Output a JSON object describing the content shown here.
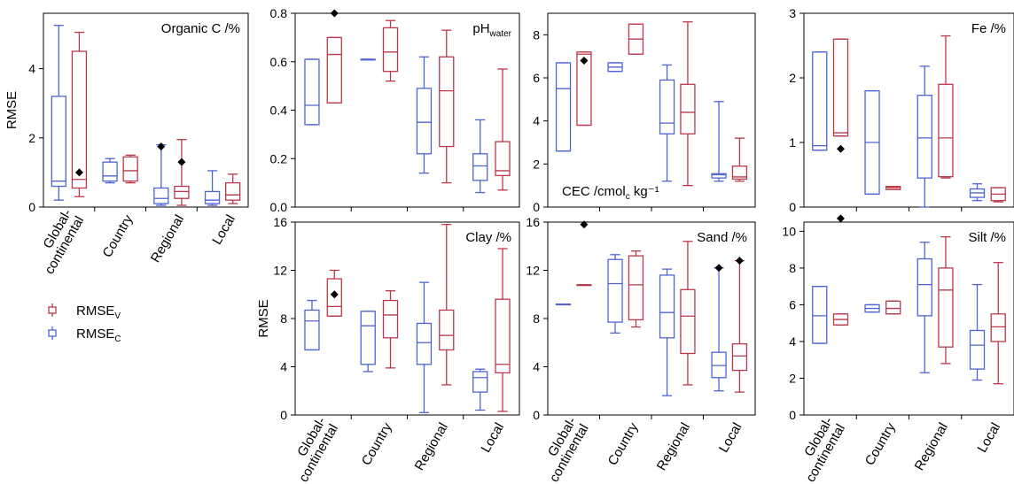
{
  "colors": {
    "validation": "#b8394b",
    "calibration": "#4f63d2",
    "frame": "#000000"
  },
  "legend": {
    "items": [
      {
        "main": "RMSE",
        "sub": "V",
        "series": "validation"
      },
      {
        "main": "RMSE",
        "sub": "C",
        "series": "calibration"
      }
    ]
  },
  "chart_data": [
    {
      "id": "organic-c",
      "type": "box",
      "title": "Organic C /%",
      "title_sub": "",
      "title_suffix": "",
      "title_pos": "top-right",
      "ylabel": "RMSE",
      "ylim": [
        0,
        5.6
      ],
      "yticks": [
        0,
        2,
        4
      ],
      "tick_labels": [
        "0",
        "2",
        "4"
      ],
      "categories": [
        "Global-continental",
        "Country",
        "Regional",
        "Local"
      ],
      "category_labels": [
        [
          "Global-",
          "continental"
        ],
        [
          "Country"
        ],
        [
          "Regional"
        ],
        [
          "Local"
        ]
      ],
      "boxes": [
        {
          "series": "calibration",
          "category": 0,
          "min": 0.2,
          "q1": 0.6,
          "median": 0.75,
          "q3": 3.2,
          "max": 5.25,
          "mean": null
        },
        {
          "series": "validation",
          "category": 0,
          "min": 0.3,
          "q1": 0.55,
          "median": 0.8,
          "q3": 4.5,
          "max": 5.05,
          "mean": 1.0
        },
        {
          "series": "calibration",
          "category": 1,
          "min": 0.7,
          "q1": 0.75,
          "median": 0.9,
          "q3": 1.3,
          "max": 1.4,
          "mean": null
        },
        {
          "series": "validation",
          "category": 1,
          "min": 0.7,
          "q1": 0.75,
          "median": 1.05,
          "q3": 1.45,
          "max": 1.5,
          "mean": null
        },
        {
          "series": "calibration",
          "category": 2,
          "min": 0.05,
          "q1": 0.1,
          "median": 0.25,
          "q3": 0.55,
          "max": 1.8,
          "mean": 1.75
        },
        {
          "series": "validation",
          "category": 2,
          "min": 0.05,
          "q1": 0.25,
          "median": 0.45,
          "q3": 0.6,
          "max": 1.95,
          "mean": 1.3
        },
        {
          "series": "calibration",
          "category": 3,
          "min": 0.05,
          "q1": 0.1,
          "median": 0.2,
          "q3": 0.45,
          "max": 1.05,
          "mean": null
        },
        {
          "series": "validation",
          "category": 3,
          "min": 0.1,
          "q1": 0.2,
          "median": 0.35,
          "q3": 0.7,
          "max": 0.95,
          "mean": null
        }
      ]
    },
    {
      "id": "ph-water",
      "type": "box",
      "title": "pH",
      "title_sub": "water",
      "title_suffix": "",
      "title_pos": "top-right",
      "ylabel": "",
      "ylim": [
        0,
        0.8
      ],
      "yticks": [
        0,
        0.2,
        0.4,
        0.6,
        0.8
      ],
      "tick_labels": [
        "0.0",
        "0.2",
        "0.4",
        "0.6",
        "0.8"
      ],
      "categories": [
        "Global-continental",
        "Country",
        "Regional",
        "Local"
      ],
      "category_labels": [],
      "boxes": [
        {
          "series": "calibration",
          "category": 0,
          "min": 0.34,
          "q1": 0.34,
          "median": 0.42,
          "q3": 0.61,
          "max": 0.61,
          "mean": null
        },
        {
          "series": "validation",
          "category": 0,
          "min": 0.43,
          "q1": 0.43,
          "median": 0.63,
          "q3": 0.7,
          "max": 0.7,
          "mean": 0.8
        },
        {
          "series": "calibration",
          "category": 1,
          "min": 0.61,
          "q1": 0.61,
          "median": 0.61,
          "q3": 0.61,
          "max": 0.61,
          "mean": null
        },
        {
          "series": "validation",
          "category": 1,
          "min": 0.52,
          "q1": 0.56,
          "median": 0.64,
          "q3": 0.74,
          "max": 0.77,
          "mean": null
        },
        {
          "series": "calibration",
          "category": 2,
          "min": 0.14,
          "q1": 0.22,
          "median": 0.35,
          "q3": 0.49,
          "max": 0.62,
          "mean": null
        },
        {
          "series": "validation",
          "category": 2,
          "min": 0.1,
          "q1": 0.25,
          "median": 0.48,
          "q3": 0.62,
          "max": 0.73,
          "mean": null
        },
        {
          "series": "calibration",
          "category": 3,
          "min": 0.06,
          "q1": 0.11,
          "median": 0.17,
          "q3": 0.22,
          "max": 0.36,
          "mean": null
        },
        {
          "series": "validation",
          "category": 3,
          "min": 0.07,
          "q1": 0.13,
          "median": 0.15,
          "q3": 0.27,
          "max": 0.57,
          "mean": null
        }
      ]
    },
    {
      "id": "cec",
      "type": "box",
      "title": "CEC /cmol",
      "title_sub": "c",
      "title_suffix": " kg⁻¹",
      "title_pos": "bottom-left",
      "ylabel": "",
      "ylim": [
        0,
        9
      ],
      "yticks": [
        0,
        2,
        4,
        6,
        8
      ],
      "tick_labels": [
        "0",
        "2",
        "4",
        "6",
        "8"
      ],
      "categories": [
        "Global-continental",
        "Country",
        "Regional",
        "Local"
      ],
      "category_labels": [],
      "boxes": [
        {
          "series": "calibration",
          "category": 0,
          "min": 2.6,
          "q1": 2.6,
          "median": 5.5,
          "q3": 6.7,
          "max": 6.7,
          "mean": null
        },
        {
          "series": "validation",
          "category": 0,
          "min": 3.8,
          "q1": 3.8,
          "median": 7.1,
          "q3": 7.2,
          "max": 7.2,
          "mean": 6.8
        },
        {
          "series": "calibration",
          "category": 1,
          "min": 6.3,
          "q1": 6.3,
          "median": 6.5,
          "q3": 6.7,
          "max": 6.7,
          "mean": null
        },
        {
          "series": "validation",
          "category": 1,
          "min": 7.1,
          "q1": 7.1,
          "median": 7.8,
          "q3": 8.5,
          "max": 8.5,
          "mean": null
        },
        {
          "series": "calibration",
          "category": 2,
          "min": 1.2,
          "q1": 3.4,
          "median": 3.9,
          "q3": 5.9,
          "max": 6.6,
          "mean": null
        },
        {
          "series": "validation",
          "category": 2,
          "min": 1.0,
          "q1": 3.4,
          "median": 4.4,
          "q3": 5.7,
          "max": 8.6,
          "mean": null
        },
        {
          "series": "calibration",
          "category": 3,
          "min": 1.2,
          "q1": 1.35,
          "median": 1.5,
          "q3": 1.55,
          "max": 4.9,
          "mean": null
        },
        {
          "series": "validation",
          "category": 3,
          "min": 1.2,
          "q1": 1.3,
          "median": 1.4,
          "q3": 1.9,
          "max": 3.2,
          "mean": null
        }
      ]
    },
    {
      "id": "fe",
      "type": "box",
      "title": "Fe /%",
      "title_sub": "",
      "title_suffix": "",
      "title_pos": "top-right",
      "ylabel": "",
      "ylim": [
        0,
        3
      ],
      "yticks": [
        0,
        1,
        2,
        3
      ],
      "tick_labels": [
        "0",
        "1",
        "2",
        "3"
      ],
      "categories": [
        "Global-continental",
        "Country",
        "Regional",
        "Local"
      ],
      "category_labels": [],
      "boxes": [
        {
          "series": "calibration",
          "category": 0,
          "min": 0.88,
          "q1": 0.88,
          "median": 0.95,
          "q3": 2.4,
          "max": 2.4,
          "mean": null
        },
        {
          "series": "validation",
          "category": 0,
          "min": 1.1,
          "q1": 1.1,
          "median": 1.15,
          "q3": 2.6,
          "max": 2.6,
          "mean": 0.9
        },
        {
          "series": "calibration",
          "category": 1,
          "min": 0.2,
          "q1": 0.2,
          "median": 1.0,
          "q3": 1.8,
          "max": 1.8,
          "mean": null
        },
        {
          "series": "validation",
          "category": 1,
          "min": 0.27,
          "q1": 0.27,
          "median": 0.3,
          "q3": 0.32,
          "max": 0.32,
          "mean": null
        },
        {
          "series": "calibration",
          "category": 2,
          "min": 0.0,
          "q1": 0.45,
          "median": 1.07,
          "q3": 1.73,
          "max": 2.18,
          "mean": null
        },
        {
          "series": "validation",
          "category": 2,
          "min": 0.45,
          "q1": 0.47,
          "median": 1.07,
          "q3": 1.9,
          "max": 2.65,
          "mean": null
        },
        {
          "series": "calibration",
          "category": 3,
          "min": 0.1,
          "q1": 0.15,
          "median": 0.22,
          "q3": 0.28,
          "max": 0.36,
          "mean": null
        },
        {
          "series": "validation",
          "category": 3,
          "min": 0.08,
          "q1": 0.1,
          "median": 0.2,
          "q3": 0.3,
          "max": 0.3,
          "mean": null
        }
      ]
    },
    {
      "id": "clay",
      "type": "box",
      "title": "Clay /%",
      "title_sub": "",
      "title_suffix": "",
      "title_pos": "top-right",
      "ylabel": "RMSE",
      "ylim": [
        0,
        16
      ],
      "yticks": [
        0,
        4,
        8,
        12,
        16
      ],
      "tick_labels": [
        "0",
        "4",
        "8",
        "12",
        "16"
      ],
      "categories": [
        "Global-continental",
        "Country",
        "Regional",
        "Local"
      ],
      "category_labels": [
        [
          "Global-",
          "continental"
        ],
        [
          "Country"
        ],
        [
          "Regional"
        ],
        [
          "Local"
        ]
      ],
      "boxes": [
        {
          "series": "calibration",
          "category": 0,
          "min": 5.4,
          "q1": 5.4,
          "median": 7.8,
          "q3": 8.7,
          "max": 9.5,
          "mean": null
        },
        {
          "series": "validation",
          "category": 0,
          "min": 8.2,
          "q1": 8.2,
          "median": 9.0,
          "q3": 11.3,
          "max": 12.0,
          "mean": 10.0
        },
        {
          "series": "calibration",
          "category": 1,
          "min": 3.6,
          "q1": 4.2,
          "median": 7.4,
          "q3": 8.6,
          "max": 8.6,
          "mean": null
        },
        {
          "series": "validation",
          "category": 1,
          "min": 3.9,
          "q1": 6.4,
          "median": 8.3,
          "q3": 9.5,
          "max": 10.3,
          "mean": null
        },
        {
          "series": "calibration",
          "category": 2,
          "min": 0.2,
          "q1": 4.2,
          "median": 6.0,
          "q3": 7.6,
          "max": 11.0,
          "mean": null
        },
        {
          "series": "validation",
          "category": 2,
          "min": 2.5,
          "q1": 5.4,
          "median": 6.6,
          "q3": 8.7,
          "max": 15.8,
          "mean": null
        },
        {
          "series": "calibration",
          "category": 3,
          "min": 0.4,
          "q1": 1.9,
          "median": 3.1,
          "q3": 3.6,
          "max": 3.8,
          "mean": null
        },
        {
          "series": "validation",
          "category": 3,
          "min": 0.3,
          "q1": 3.5,
          "median": 4.2,
          "q3": 9.6,
          "max": 13.8,
          "mean": null
        }
      ]
    },
    {
      "id": "sand",
      "type": "box",
      "title": "Sand /%",
      "title_sub": "",
      "title_suffix": "",
      "title_pos": "top-right",
      "ylabel": "",
      "ylim": [
        0,
        16
      ],
      "yticks": [
        0,
        4,
        8,
        12,
        16
      ],
      "tick_labels": [
        "0",
        "4",
        "8",
        "12",
        "16"
      ],
      "categories": [
        "Global-continental",
        "Country",
        "Regional",
        "Local"
      ],
      "category_labels": [
        [
          "Global-",
          "continental"
        ],
        [
          "Country"
        ],
        [
          "Regional"
        ],
        [
          "Local"
        ]
      ],
      "boxes": [
        {
          "series": "calibration",
          "category": 0,
          "min": 9.2,
          "q1": 9.2,
          "median": 9.2,
          "q3": 9.2,
          "max": 9.2,
          "mean": null
        },
        {
          "series": "validation",
          "category": 0,
          "min": 10.8,
          "q1": 10.8,
          "median": 10.8,
          "q3": 10.8,
          "max": 10.8,
          "mean": 15.8
        },
        {
          "series": "calibration",
          "category": 1,
          "min": 6.8,
          "q1": 7.7,
          "median": 10.9,
          "q3": 12.9,
          "max": 13.3,
          "mean": null
        },
        {
          "series": "validation",
          "category": 1,
          "min": 7.3,
          "q1": 7.9,
          "median": 10.8,
          "q3": 13.2,
          "max": 13.6,
          "mean": null
        },
        {
          "series": "calibration",
          "category": 2,
          "min": 1.6,
          "q1": 6.4,
          "median": 8.5,
          "q3": 11.6,
          "max": 12.1,
          "mean": null
        },
        {
          "series": "validation",
          "category": 2,
          "min": 2.5,
          "q1": 5.1,
          "median": 8.2,
          "q3": 10.4,
          "max": 14.4,
          "mean": null
        },
        {
          "series": "calibration",
          "category": 3,
          "min": 2.0,
          "q1": 3.1,
          "median": 4.1,
          "q3": 5.2,
          "max": 12.2,
          "mean": 12.2
        },
        {
          "series": "validation",
          "category": 3,
          "min": 1.9,
          "q1": 3.7,
          "median": 4.9,
          "q3": 5.9,
          "max": 12.8,
          "mean": 12.8
        }
      ]
    },
    {
      "id": "silt",
      "type": "box",
      "title": "Silt /%",
      "title_sub": "",
      "title_suffix": "",
      "title_pos": "top-right",
      "ylabel": "",
      "ylim": [
        0,
        10.5
      ],
      "yticks": [
        0,
        2,
        4,
        6,
        8,
        10
      ],
      "tick_labels": [
        "0",
        "2",
        "4",
        "6",
        "8",
        "10"
      ],
      "categories": [
        "Global-continental",
        "Country",
        "Regional",
        "Local"
      ],
      "category_labels": [
        [
          "Global-",
          "continental"
        ],
        [
          "Country"
        ],
        [
          "Regional"
        ],
        [
          "Local"
        ]
      ],
      "boxes": [
        {
          "series": "calibration",
          "category": 0,
          "min": 3.9,
          "q1": 3.9,
          "median": 5.4,
          "q3": 7.0,
          "max": 7.0,
          "mean": null
        },
        {
          "series": "validation",
          "category": 0,
          "min": 4.9,
          "q1": 4.9,
          "median": 5.2,
          "q3": 5.5,
          "max": 5.5,
          "mean": 10.7
        },
        {
          "series": "calibration",
          "category": 1,
          "min": 5.6,
          "q1": 5.6,
          "median": 5.8,
          "q3": 6.0,
          "max": 6.0,
          "mean": null
        },
        {
          "series": "validation",
          "category": 1,
          "min": 5.5,
          "q1": 5.5,
          "median": 5.8,
          "q3": 6.2,
          "max": 6.2,
          "mean": null
        },
        {
          "series": "calibration",
          "category": 2,
          "min": 2.3,
          "q1": 5.4,
          "median": 7.1,
          "q3": 8.5,
          "max": 9.4,
          "mean": null
        },
        {
          "series": "validation",
          "category": 2,
          "min": 2.8,
          "q1": 3.7,
          "median": 6.8,
          "q3": 8.0,
          "max": 9.7,
          "mean": null
        },
        {
          "series": "calibration",
          "category": 3,
          "min": 1.9,
          "q1": 2.5,
          "median": 3.8,
          "q3": 4.6,
          "max": 7.1,
          "mean": null
        },
        {
          "series": "validation",
          "category": 3,
          "min": 1.7,
          "q1": 4.0,
          "median": 4.8,
          "q3": 5.5,
          "max": 8.3,
          "mean": null
        }
      ]
    }
  ]
}
